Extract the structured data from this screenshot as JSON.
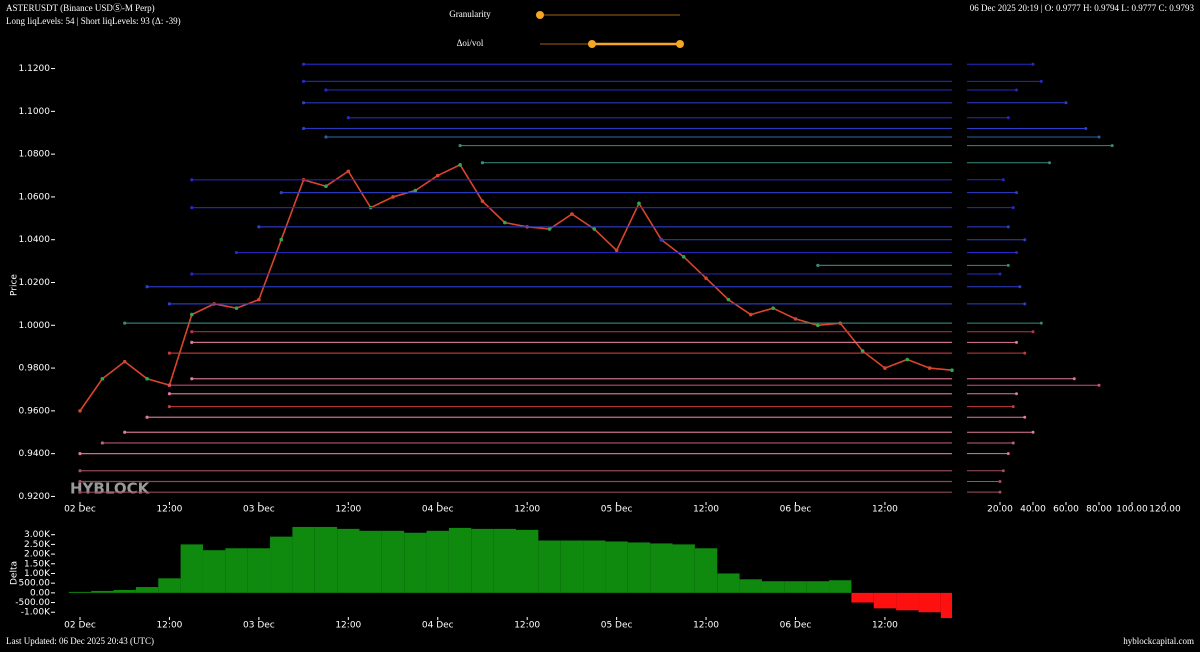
{
  "header": {
    "symbol": "ASTERUSDT (Binance USDⓈ-M Perp)",
    "levels": "Long liqLevels: 54 | Short liqLevels: 93 (Δ: -39)",
    "ohlc": "06 Dec 2025 20:19 | O: 0.9777 H: 0.9794 L: 0.9777 C: 0.9793",
    "granularity": "Granularity",
    "oi_vol": "Δoi/vol"
  },
  "watermark": "HYBLOCK",
  "footer": {
    "updated": "Last Updated: 06 Dec 2025 20:43 (UTC)",
    "site": "hyblockcapital.com"
  },
  "chart_data": [
    {
      "type": "line",
      "ylabel": "Price",
      "color": "#d9452c",
      "categories": [
        "02 Dec 00:00",
        "02 Dec 03:00",
        "02 Dec 06:00",
        "02 Dec 09:00",
        "02 Dec 12:00",
        "02 Dec 15:00",
        "02 Dec 18:00",
        "02 Dec 21:00",
        "03 Dec 00:00",
        "03 Dec 03:00",
        "03 Dec 06:00",
        "03 Dec 09:00",
        "03 Dec 12:00",
        "03 Dec 15:00",
        "03 Dec 18:00",
        "03 Dec 21:00",
        "04 Dec 00:00",
        "04 Dec 03:00",
        "04 Dec 06:00",
        "04 Dec 09:00",
        "04 Dec 12:00",
        "04 Dec 15:00",
        "04 Dec 18:00",
        "04 Dec 21:00",
        "05 Dec 00:00",
        "05 Dec 03:00",
        "05 Dec 06:00",
        "05 Dec 09:00",
        "05 Dec 12:00",
        "05 Dec 15:00",
        "05 Dec 18:00",
        "05 Dec 21:00",
        "06 Dec 00:00",
        "06 Dec 03:00",
        "06 Dec 06:00",
        "06 Dec 09:00",
        "06 Dec 12:00",
        "06 Dec 15:00",
        "06 Dec 18:00",
        "06 Dec 21:00"
      ],
      "values": [
        0.96,
        0.975,
        0.983,
        0.975,
        0.972,
        1.005,
        1.01,
        1.008,
        1.012,
        1.04,
        1.068,
        1.065,
        1.072,
        1.055,
        1.06,
        1.063,
        1.07,
        1.075,
        1.058,
        1.048,
        1.046,
        1.045,
        1.052,
        1.045,
        1.035,
        1.057,
        1.04,
        1.032,
        1.022,
        1.012,
        1.005,
        1.008,
        1.003,
        1.0,
        1.001,
        0.988,
        0.98,
        0.984,
        0.98,
        0.979
      ],
      "ylim": [
        0.916,
        1.124
      ],
      "yticks": [
        {
          "value": 1.12,
          "label": "1.1200"
        },
        {
          "value": 1.1,
          "label": "1.1000"
        },
        {
          "value": 1.08,
          "label": "1.0800"
        },
        {
          "value": 1.06,
          "label": "1.0600"
        },
        {
          "value": 1.04,
          "label": "1.0400"
        },
        {
          "value": 1.02,
          "label": "1.0200"
        },
        {
          "value": 1.0,
          "label": "1.0000"
        },
        {
          "value": 0.98,
          "label": "0.9800"
        },
        {
          "value": 0.96,
          "label": "0.9600"
        },
        {
          "value": 0.94,
          "label": "0.9400"
        },
        {
          "value": 0.92,
          "label": "0.9200"
        }
      ],
      "xticks": [
        {
          "value": "02 Dec 00:00",
          "label": "02 Dec"
        },
        {
          "value": "02 Dec 12:00",
          "label": "12:00"
        },
        {
          "value": "03 Dec 00:00",
          "label": "03 Dec"
        },
        {
          "value": "03 Dec 12:00",
          "label": "12:00"
        },
        {
          "value": "04 Dec 00:00",
          "label": "04 Dec"
        },
        {
          "value": "04 Dec 12:00",
          "label": "12:00"
        },
        {
          "value": "05 Dec 00:00",
          "label": "05 Dec"
        },
        {
          "value": "05 Dec 12:00",
          "label": "12:00"
        },
        {
          "value": "06 Dec 00:00",
          "label": "06 Dec"
        },
        {
          "value": "06 Dec 12:00",
          "label": "12:00"
        }
      ]
    },
    {
      "type": "levels",
      "y": [
        1.122,
        1.114,
        1.11,
        1.104,
        1.097,
        1.092,
        1.088,
        1.084,
        1.076,
        1.068,
        1.062,
        1.055,
        1.046,
        1.04,
        1.034,
        1.028,
        1.024,
        1.018,
        1.01,
        1.001,
        0.997,
        0.992,
        0.987,
        0.975,
        0.972,
        0.968,
        0.962,
        0.957,
        0.95,
        0.945,
        0.94,
        0.932,
        0.927,
        0.922
      ],
      "values": [
        40,
        45,
        30,
        60,
        25,
        72,
        80,
        88,
        50,
        22,
        30,
        28,
        25,
        35,
        30,
        25,
        20,
        32,
        35,
        45,
        40,
        30,
        35,
        65,
        80,
        30,
        28,
        35,
        40,
        28,
        25,
        22,
        20,
        20
      ],
      "start": [
        "03 Dec 06:00",
        "03 Dec 06:00",
        "03 Dec 09:00",
        "03 Dec 06:00",
        "03 Dec 12:00",
        "03 Dec 06:00",
        "03 Dec 09:00",
        "04 Dec 03:00",
        "04 Dec 06:00",
        "02 Dec 15:00",
        "03 Dec 03:00",
        "02 Dec 15:00",
        "03 Dec 00:00",
        "05 Dec 06:00",
        "02 Dec 21:00",
        "06 Dec 03:00",
        "02 Dec 15:00",
        "02 Dec 09:00",
        "02 Dec 12:00",
        "02 Dec 06:00",
        "02 Dec 15:00",
        "02 Dec 15:00",
        "02 Dec 12:00",
        "02 Dec 15:00",
        "02 Dec 12:00",
        "02 Dec 12:00",
        "02 Dec 12:00",
        "02 Dec 09:00",
        "02 Dec 06:00",
        "02 Dec 03:00",
        "02 Dec 00:00",
        "02 Dec 00:00",
        "02 Dec 00:00",
        "02 Dec 00:00"
      ],
      "colors": [
        "#2828c8",
        "#2828c8",
        "#2828c8",
        "#2d3fd0",
        "#2828c8",
        "#2d3fd0",
        "#2d5fa0",
        "#3a8a7a",
        "#3a8a7a",
        "#2828c8",
        "#2d3fd0",
        "#2828c8",
        "#2d3fd0",
        "#2d3fd0",
        "#2828c8",
        "#3a8a7a",
        "#2828c8",
        "#2d3fd0",
        "#2d3fd0",
        "#3a8a7a",
        "#c0304a",
        "#e07a9a",
        "#c83a3a",
        "#e07a9a",
        "#d05070",
        "#e07a9a",
        "#c83a3a",
        "#e07a9a",
        "#e07a9a",
        "#c06080",
        "#e07a9a",
        "#a05060",
        "#a05060",
        "#a05060"
      ],
      "xlim": [
        0,
        140
      ],
      "xticks": [
        {
          "value": 20,
          "label": "20.00"
        },
        {
          "value": 40,
          "label": "40.00"
        },
        {
          "value": 60,
          "label": "60.00"
        },
        {
          "value": 80,
          "label": "80.00"
        },
        {
          "value": 100,
          "label": "100.00"
        },
        {
          "value": 120,
          "label": "120.00"
        }
      ]
    },
    {
      "type": "step",
      "ylabel": "Delta",
      "color_positive": "#0f8a0f",
      "color_negative": "#ff1010",
      "categories": [
        "02 Dec 00:00",
        "02 Dec 03:00",
        "02 Dec 06:00",
        "02 Dec 09:00",
        "02 Dec 12:00",
        "02 Dec 15:00",
        "02 Dec 18:00",
        "02 Dec 21:00",
        "03 Dec 00:00",
        "03 Dec 03:00",
        "03 Dec 06:00",
        "03 Dec 09:00",
        "03 Dec 12:00",
        "03 Dec 15:00",
        "03 Dec 18:00",
        "03 Dec 21:00",
        "04 Dec 00:00",
        "04 Dec 03:00",
        "04 Dec 06:00",
        "04 Dec 09:00",
        "04 Dec 12:00",
        "04 Dec 15:00",
        "04 Dec 18:00",
        "04 Dec 21:00",
        "05 Dec 00:00",
        "05 Dec 03:00",
        "05 Dec 06:00",
        "05 Dec 09:00",
        "05 Dec 12:00",
        "05 Dec 15:00",
        "05 Dec 18:00",
        "05 Dec 21:00",
        "06 Dec 00:00",
        "06 Dec 03:00",
        "06 Dec 06:00",
        "06 Dec 09:00",
        "06 Dec 12:00",
        "06 Dec 15:00",
        "06 Dec 18:00",
        "06 Dec 21:00"
      ],
      "values": [
        50,
        100,
        150,
        300,
        750,
        2500,
        2200,
        2300,
        2300,
        2900,
        3400,
        3400,
        3300,
        3200,
        3200,
        3100,
        3200,
        3350,
        3300,
        3300,
        3250,
        2700,
        2700,
        2700,
        2650,
        2600,
        2550,
        2500,
        2300,
        1000,
        700,
        600,
        600,
        600,
        650,
        -500,
        -800,
        -900,
        -1000,
        -1300
      ],
      "ylim": [
        -1400,
        3500
      ],
      "yticks": [
        {
          "value": 3000,
          "label": "3.00K"
        },
        {
          "value": 2500,
          "label": "2.50K"
        },
        {
          "value": 2000,
          "label": "2.00K"
        },
        {
          "value": 1500,
          "label": "1.50K"
        },
        {
          "value": 1000,
          "label": "1.00K"
        },
        {
          "value": 500,
          "label": "500.00"
        },
        {
          "value": 0,
          "label": "0.00"
        },
        {
          "value": -500,
          "label": "-500.00"
        },
        {
          "value": -1000,
          "label": "-1.00K"
        }
      ],
      "xticks": [
        {
          "value": "02 Dec 00:00",
          "label": "02 Dec"
        },
        {
          "value": "02 Dec 12:00",
          "label": "12:00"
        },
        {
          "value": "03 Dec 00:00",
          "label": "03 Dec"
        },
        {
          "value": "03 Dec 12:00",
          "label": "12:00"
        },
        {
          "value": "04 Dec 00:00",
          "label": "04 Dec"
        },
        {
          "value": "04 Dec 12:00",
          "label": "12:00"
        },
        {
          "value": "05 Dec 00:00",
          "label": "05 Dec"
        },
        {
          "value": "05 Dec 12:00",
          "label": "12:00"
        },
        {
          "value": "06 Dec 00:00",
          "label": "06 Dec"
        },
        {
          "value": "06 Dec 12:00",
          "label": "12:00"
        }
      ]
    }
  ]
}
